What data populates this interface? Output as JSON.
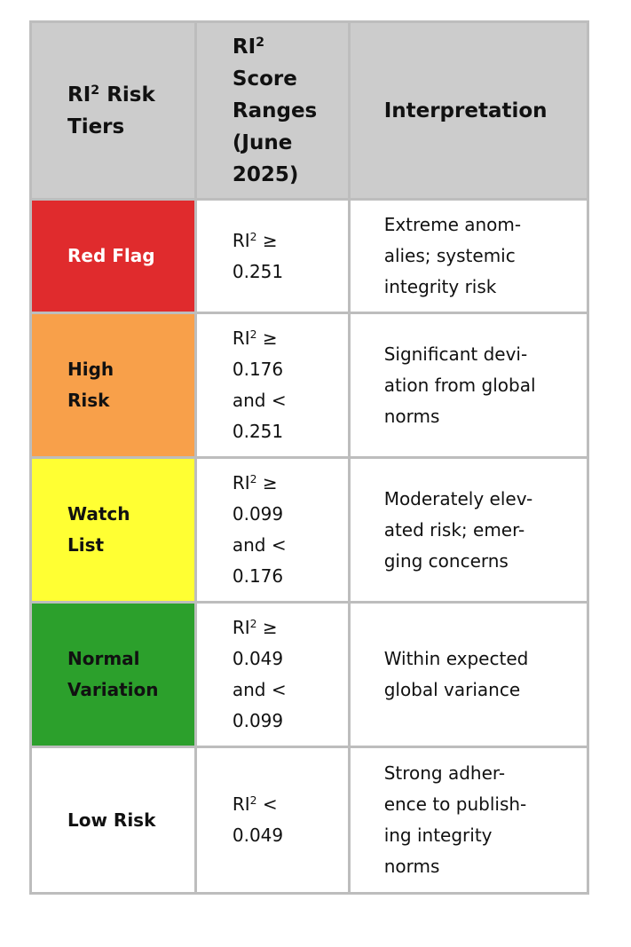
{
  "colors": {
    "header_bg": "#cccccc",
    "grid": "#bdbdbd",
    "red_flag": "#e02b2d",
    "high_risk": "#f8a04a",
    "watch_list": "#ffff33",
    "normal_variation": "#2ca02c",
    "low_risk": "#ffffff"
  },
  "header": {
    "tiers": {
      "prefix": "RI",
      "sup": "2",
      "suffix": " Risk",
      "line2": "Tiers"
    },
    "ranges": {
      "prefix": "RI",
      "sup": "2",
      "line2": "Score",
      "line3": "Ranges",
      "line4": "(June",
      "line5": "2025)"
    },
    "interpretation": "Interpretation"
  },
  "rows": [
    {
      "tier": [
        "Red Flag"
      ],
      "range_lines": [
        "≥",
        "0.251"
      ],
      "interpretation": [
        "Extreme anom-",
        "alies; systemic",
        "integrity risk"
      ]
    },
    {
      "tier": [
        "High",
        "Risk"
      ],
      "range_lines": [
        "≥",
        "0.176",
        "and <",
        "0.251"
      ],
      "interpretation": [
        "Significant devi-",
        "ation from global",
        "norms"
      ]
    },
    {
      "tier": [
        "Watch",
        "List"
      ],
      "range_lines": [
        "≥",
        "0.099",
        "and <",
        "0.176"
      ],
      "interpretation": [
        "Moderately elev-",
        "ated risk; emer-",
        "ging concerns"
      ]
    },
    {
      "tier": [
        "Normal",
        "Variation"
      ],
      "range_lines": [
        "≥",
        "0.049",
        "and <",
        "0.099"
      ],
      "interpretation": [
        "Within expected",
        "global variance"
      ]
    },
    {
      "tier": [
        "Low Risk"
      ],
      "range_lines": [
        "<",
        "0.049"
      ],
      "interpretation": [
        "Strong adher-",
        "ence to publish-",
        "ing integrity",
        "norms"
      ]
    }
  ],
  "ri_prefix": "RI",
  "ri_sup": "2"
}
